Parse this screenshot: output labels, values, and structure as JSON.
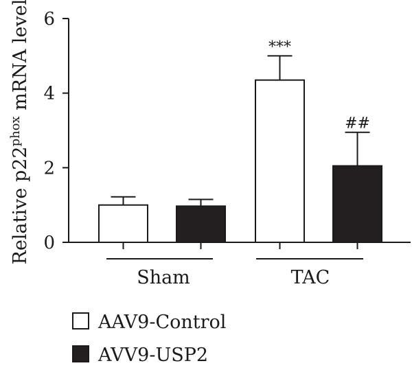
{
  "chart_data": {
    "type": "bar",
    "title": "",
    "xlabel": "",
    "ylabel": {
      "prefix": "Relative p22",
      "superscript": "phox",
      "suffix": " mRNA level"
    },
    "ylim": [
      0,
      6
    ],
    "yticks": [
      0,
      2,
      4,
      6
    ],
    "categories": [
      "Sham",
      "TAC"
    ],
    "series": [
      {
        "name": "AAV9-Control",
        "color": "#ffffff",
        "values": [
          1.0,
          4.35
        ],
        "errors": [
          0.22,
          0.65
        ],
        "annotations": [
          "",
          "***"
        ]
      },
      {
        "name": "AVV9-USP2",
        "color": "#231f20",
        "values": [
          0.97,
          2.05
        ],
        "errors": [
          0.18,
          0.9
        ],
        "annotations": [
          "",
          "##"
        ]
      }
    ],
    "grid": false,
    "legend_position": "bottom-left"
  }
}
